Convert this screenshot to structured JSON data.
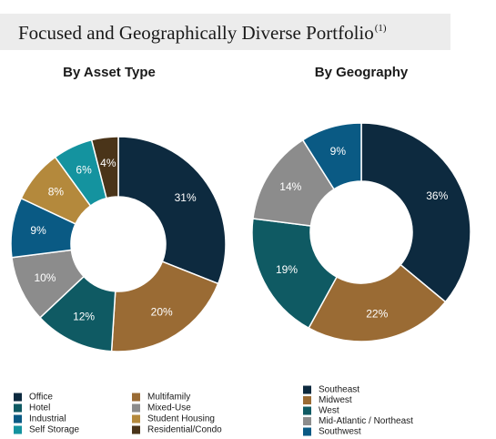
{
  "title": "Focused and Geographically Diverse Portfolio",
  "title_note": "(1)",
  "chart_data": [
    {
      "type": "donut",
      "title": "By Asset Type",
      "categories": [
        "Office",
        "Multifamily",
        "Hotel",
        "Mixed-Use",
        "Industrial",
        "Student Housing",
        "Self Storage",
        "Residential/Condo"
      ],
      "values": [
        31,
        20,
        12,
        10,
        9,
        8,
        6,
        4
      ],
      "value_labels": [
        "31%",
        "20%",
        "12%",
        "10%",
        "9%",
        "8%",
        "6%",
        "4%"
      ],
      "colors": [
        "#0d2a3f",
        "#9a6b34",
        "#0f5a63",
        "#8c8c8c",
        "#0a5a84",
        "#b4893c",
        "#14939f",
        "#4a3419"
      ]
    },
    {
      "type": "donut",
      "title": "By Geography",
      "categories": [
        "Southeast",
        "Midwest",
        "West",
        "Mid-Atlantic / Northeast",
        "Southwest"
      ],
      "values": [
        36,
        22,
        19,
        14,
        9
      ],
      "value_labels": [
        "36%",
        "22%",
        "19%",
        "14%",
        "9%"
      ],
      "colors": [
        "#0d2a3f",
        "#9a6b34",
        "#0f5a63",
        "#8c8c8c",
        "#0a5a84"
      ]
    }
  ]
}
